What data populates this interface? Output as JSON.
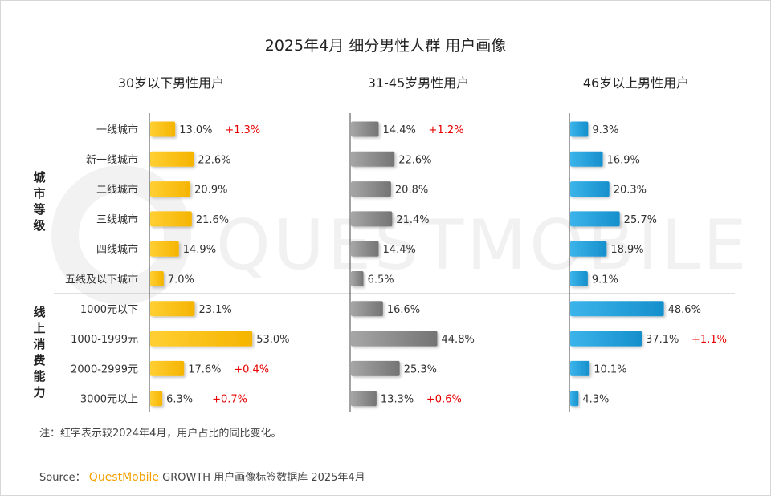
{
  "title": "2025年4月 细分男性人群 用户画像",
  "watermark": "QUESTMOBILE",
  "group_labels": [
    "城市等级",
    "线上消费能力"
  ],
  "colors": {
    "under30": "#f5b400",
    "age31_45": "#7d7d7d",
    "over46": "#1f9ad6",
    "change": "#e60000",
    "brand": "#f5a000"
  },
  "note": "注：红字表示较2024年4月，用户占比的同比变化。",
  "source": {
    "prefix": "Source：",
    "brand": "QuestMobile",
    "suffix": " GROWTH 用户画像标签数据库 2025年4月"
  },
  "chart_data": {
    "type": "bar",
    "orientation": "horizontal",
    "categories": [
      "一线城市",
      "新一线城市",
      "二线城市",
      "三线城市",
      "四线城市",
      "五线及以下城市",
      "1000元以下",
      "1000-1999元",
      "2000-2999元",
      "3000元以上"
    ],
    "value_format": "percent",
    "series": [
      {
        "name": "30岁以下男性用户",
        "values": [
          13.0,
          22.6,
          20.9,
          21.6,
          14.9,
          7.0,
          23.1,
          53.0,
          17.6,
          6.3
        ],
        "changes": [
          "+1.3%",
          "",
          "",
          "",
          "",
          "",
          "",
          "",
          "+0.4%",
          "+0.7%"
        ]
      },
      {
        "name": "31-45岁男性用户",
        "values": [
          14.4,
          22.6,
          20.8,
          21.4,
          14.4,
          6.5,
          16.6,
          44.8,
          25.3,
          13.3
        ],
        "changes": [
          "+1.2%",
          "",
          "",
          "",
          "",
          "",
          "",
          "",
          "",
          "+0.6%"
        ]
      },
      {
        "name": "46岁以上男性用户",
        "values": [
          9.3,
          16.9,
          20.3,
          25.7,
          18.9,
          9.1,
          48.6,
          37.1,
          10.1,
          4.3
        ],
        "changes": [
          "",
          "",
          "",
          "",
          "",
          "",
          "",
          "+1.1%",
          "",
          ""
        ]
      }
    ]
  }
}
